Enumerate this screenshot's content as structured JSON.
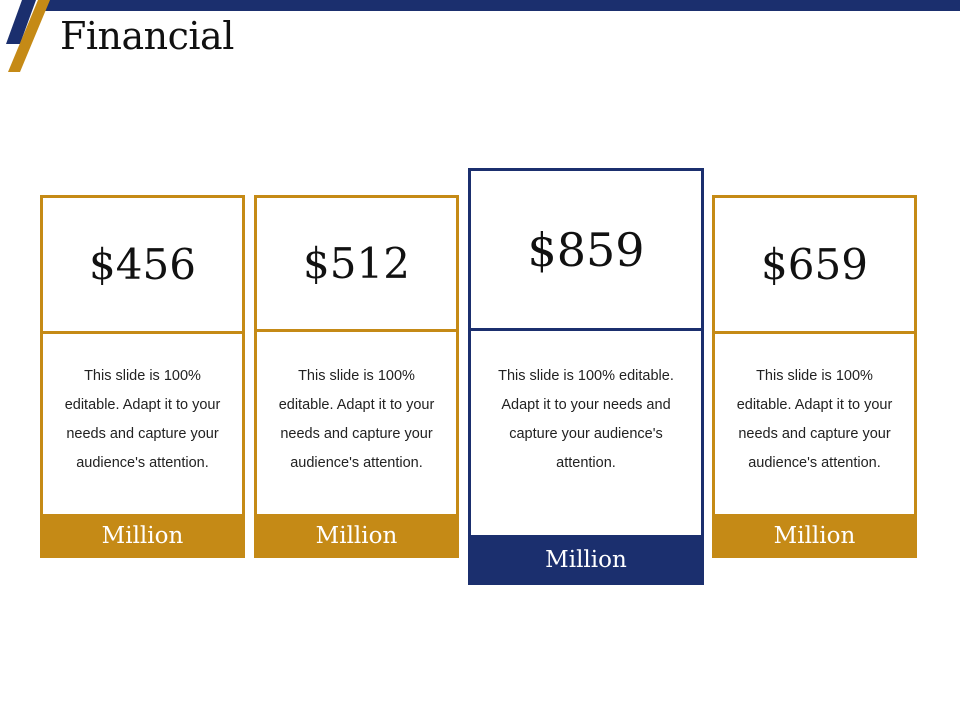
{
  "slide": {
    "title": "Financial"
  },
  "colors": {
    "gold": "#c58a16",
    "navy": "#1b2f6e"
  },
  "cards": [
    {
      "price": "$456",
      "description": "This slide is 100% editable. Adapt it to your needs and capture your audience's attention.",
      "unit": "Million"
    },
    {
      "price": "$512",
      "description": "This slide is 100% editable. Adapt it to your needs and capture your audience's attention.",
      "unit": "Million"
    },
    {
      "price": "$859",
      "description": "This slide is 100% editable. Adapt it to your needs and capture your audience's attention.",
      "unit": "Million"
    },
    {
      "price": "$659",
      "description": "This slide is 100% editable. Adapt it to your needs and capture your audience's attention.",
      "unit": "Million"
    }
  ]
}
